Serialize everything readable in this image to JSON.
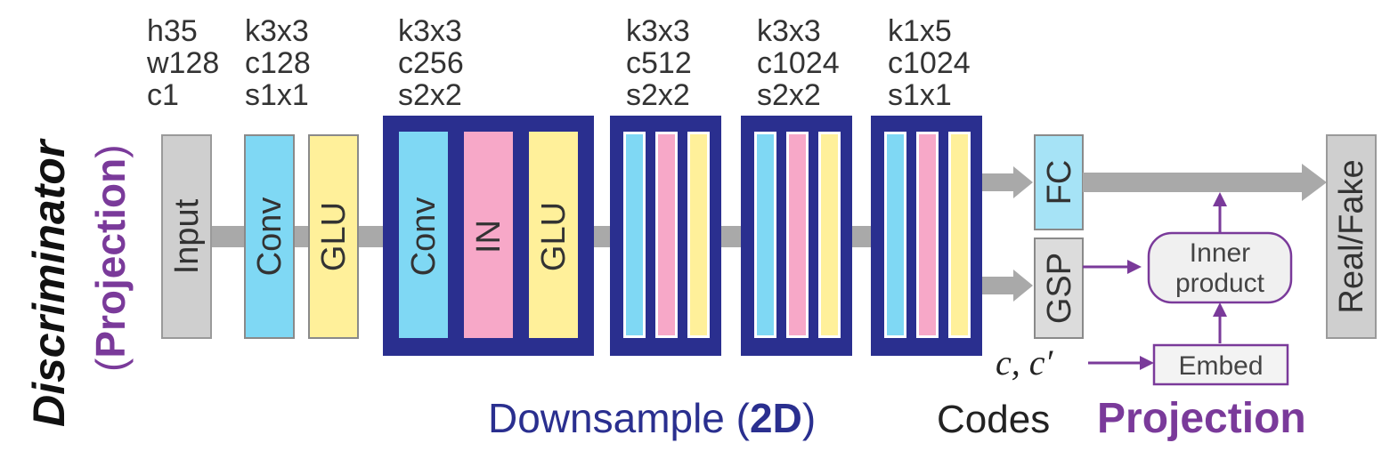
{
  "title": {
    "main": "Discriminator",
    "sub_open": "(",
    "sub": "Projection",
    "sub_close": ")"
  },
  "layers": [
    {
      "spec": [
        "h35",
        "w128",
        "c1"
      ],
      "blocks": [
        "Input"
      ]
    },
    {
      "spec": [
        "k3x3",
        "c128",
        "s1x1"
      ],
      "blocks": [
        "Conv",
        "GLU"
      ]
    },
    {
      "spec": [
        "k3x3",
        "c256",
        "s2x2"
      ],
      "blocks": [
        "Conv",
        "IN",
        "GLU"
      ]
    },
    {
      "spec": [
        "k3x3",
        "c512",
        "s2x2"
      ]
    },
    {
      "spec": [
        "k3x3",
        "c1024",
        "s2x2"
      ]
    },
    {
      "spec": [
        "k1x5",
        "c1024",
        "s1x1"
      ]
    }
  ],
  "heads": {
    "fc": "FC",
    "gsp": "GSP",
    "inner_line1": "Inner",
    "inner_line2": "product",
    "embed": "Embed",
    "output": "Real/Fake",
    "codes_math": "c, c′"
  },
  "captions": {
    "downsample": "Downsample (",
    "downsample_bold": "2D",
    "downsample_close": ")",
    "codes": "Codes",
    "projection": "Projection"
  },
  "colors": {
    "gray_block": "#cfcfcf",
    "conv": "#7fd8f4",
    "in": "#f7a8c8",
    "glu": "#fff09a",
    "downsample_frame": "#2a2f8f",
    "projection": "#7a3a9a",
    "arrow": "#a9a9a9"
  }
}
